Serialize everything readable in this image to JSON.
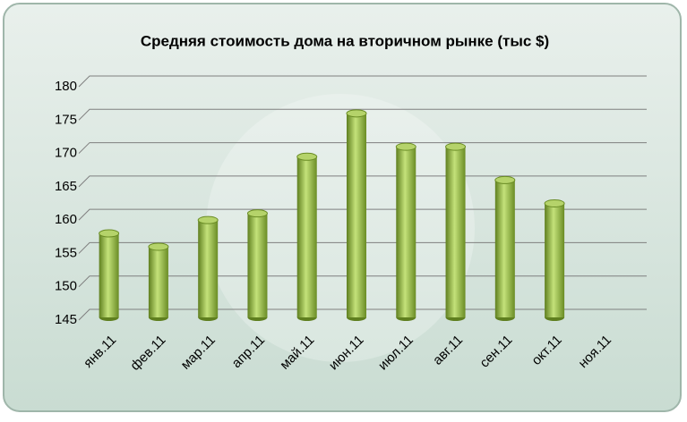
{
  "chart_data": {
    "type": "bar",
    "title": "Средняя стоимость дома на вторичном рынке (тыс $)",
    "categories": [
      "янв.11",
      "фев.11",
      "мар.11",
      "апр.11",
      "май.11",
      "июн.11",
      "июл.11",
      "авг.11",
      "сен.11",
      "окт.11",
      "ноя.11"
    ],
    "values": [
      158,
      156,
      160,
      161,
      169.5,
      176,
      171,
      171,
      166,
      162.5,
      null
    ],
    "color": "#8fb83c",
    "ylim": [
      145,
      180
    ],
    "yticks": [
      145,
      150,
      155,
      160,
      165,
      170,
      175,
      180
    ],
    "grid": true
  }
}
